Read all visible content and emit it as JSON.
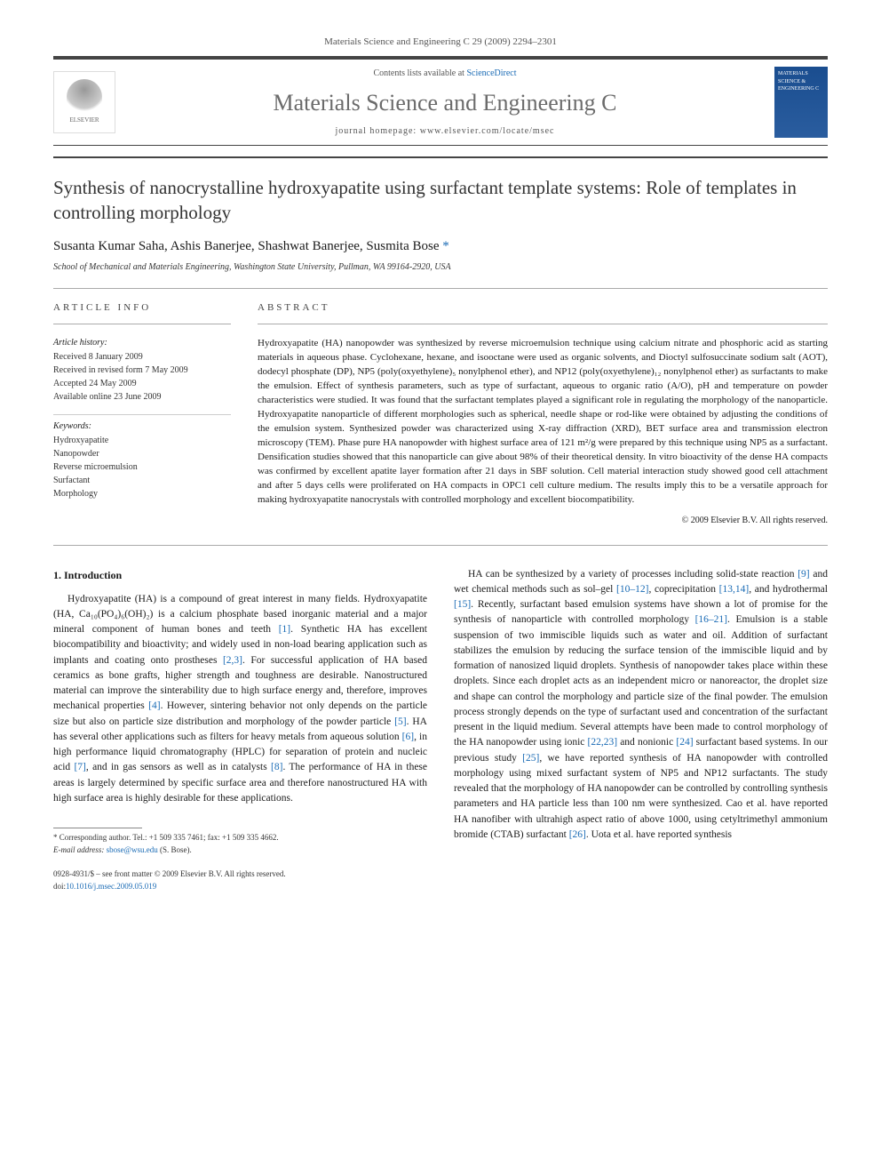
{
  "header": {
    "running_head": "Materials Science and Engineering C 29 (2009) 2294–2301",
    "contents_prefix": "Contents lists available at ",
    "contents_link": "ScienceDirect",
    "journal_name": "Materials Science and Engineering C",
    "homepage_label": "journal homepage: ",
    "homepage_url": "www.elsevier.com/locate/msec",
    "publisher_logo": "ELSEVIER",
    "cover_text": "MATERIALS SCIENCE & ENGINEERING C"
  },
  "article": {
    "title": "Synthesis of nanocrystalline hydroxyapatite using surfactant template systems: Role of templates in controlling morphology",
    "authors": "Susanta Kumar Saha, Ashis Banerjee, Shashwat Banerjee, Susmita Bose ",
    "corr_mark": "*",
    "affiliation": "School of Mechanical and Materials Engineering, Washington State University, Pullman, WA 99164-2920, USA"
  },
  "info": {
    "heading": "ARTICLE INFO",
    "history_label": "Article history:",
    "received": "Received 8 January 2009",
    "revised": "Received in revised form 7 May 2009",
    "accepted": "Accepted 24 May 2009",
    "online": "Available online 23 June 2009",
    "keywords_label": "Keywords:",
    "kw1": "Hydroxyapatite",
    "kw2": "Nanopowder",
    "kw3": "Reverse microemulsion",
    "kw4": "Surfactant",
    "kw5": "Morphology"
  },
  "abstract": {
    "heading": "ABSTRACT",
    "text": "Hydroxyapatite (HA) nanopowder was synthesized by reverse microemulsion technique using calcium nitrate and phosphoric acid as starting materials in aqueous phase. Cyclohexane, hexane, and isooctane were used as organic solvents, and Dioctyl sulfosuccinate sodium salt (AOT), dodecyl phosphate (DP), NP5 (poly(oxyethylene)₅ nonylphenol ether), and NP12 (poly(oxyethylene)₁₂ nonylphenol ether) as surfactants to make the emulsion. Effect of synthesis parameters, such as type of surfactant, aqueous to organic ratio (A/O), pH and temperature on powder characteristics were studied. It was found that the surfactant templates played a significant role in regulating the morphology of the nanoparticle. Hydroxyapatite nanoparticle of different morphologies such as spherical, needle shape or rod-like were obtained by adjusting the conditions of the emulsion system. Synthesized powder was characterized using X-ray diffraction (XRD), BET surface area and transmission electron microscopy (TEM). Phase pure HA nanopowder with highest surface area of 121 m²/g were prepared by this technique using NP5 as a surfactant. Densification studies showed that this nanoparticle can give about 98% of their theoretical density. In vitro bioactivity of the dense HA compacts was confirmed by excellent apatite layer formation after 21 days in SBF solution. Cell material interaction study showed good cell attachment and after 5 days cells were proliferated on HA compacts in OPC1 cell culture medium. The results imply this to be a versatile approach for making hydroxyapatite nanocrystals with controlled morphology and excellent biocompatibility.",
    "copyright": "© 2009 Elsevier B.V. All rights reserved."
  },
  "body": {
    "section_heading": "1. Introduction",
    "col1_p1": "Hydroxyapatite (HA) is a compound of great interest in many fields. Hydroxyapatite (HA, Ca₁₀(PO₄)₆(OH)₂) is a calcium phosphate based inorganic material and a major mineral component of human bones and teeth [1]. Synthetic HA has excellent biocompatibility and bioactivity; and widely used in non-load bearing application such as implants and coating onto prostheses [2,3]. For successful application of HA based ceramics as bone grafts, higher strength and toughness are desirable. Nanostructured material can improve the sinterability due to high surface energy and, therefore, improves mechanical properties [4]. However, sintering behavior not only depends on the particle size but also on particle size distribution and morphology of the powder particle [5]. HA has several other applications such as filters for heavy metals from aqueous solution [6], in high performance liquid chromatography (HPLC) for separation of protein and nucleic acid [7], and in gas sensors as well as in catalysts [8]. The performance of HA in these areas is largely determined by specific surface area and therefore nanostructured HA with high surface area is highly desirable for these applications.",
    "col2_p1": "HA can be synthesized by a variety of processes including solid-state reaction [9] and wet chemical methods such as sol–gel [10–12], coprecipitation [13,14], and hydrothermal [15]. Recently, surfactant based emulsion systems have shown a lot of promise for the synthesis of nanoparticle with controlled morphology [16–21]. Emulsion is a stable suspension of two immiscible liquids such as water and oil. Addition of surfactant stabilizes the emulsion by reducing the surface tension of the immiscible liquid and by formation of nanosized liquid droplets. Synthesis of nanopowder takes place within these droplets. Since each droplet acts as an independent micro or nanoreactor, the droplet size and shape can control the morphology and particle size of the final powder. The emulsion process strongly depends on the type of surfactant used and concentration of the surfactant present in the liquid medium. Several attempts have been made to control morphology of the HA nanopowder using ionic [22,23] and nonionic [24] surfactant based systems. In our previous study [25], we have reported synthesis of HA nanopowder with controlled morphology using mixed surfactant system of NP5 and NP12 surfactants. The study revealed that the morphology of HA nanopowder can be controlled by controlling synthesis parameters and HA particle less than 100 nm were synthesized. Cao et al. have reported HA nanofiber with ultrahigh aspect ratio of above 1000, using cetyltrimethyl ammonium bromide (CTAB) surfactant [26]. Uota et al. have reported synthesis"
  },
  "footer": {
    "corr_label": "* Corresponding author. Tel.: +1 509 335 7461; fax: +1 509 335 4662.",
    "email_label": "E-mail address: ",
    "email": "sbose@wsu.edu",
    "email_suffix": " (S. Bose).",
    "issn_line": "0928-4931/$ – see front matter © 2009 Elsevier B.V. All rights reserved.",
    "doi_prefix": "doi:",
    "doi": "10.1016/j.msec.2009.05.019"
  }
}
